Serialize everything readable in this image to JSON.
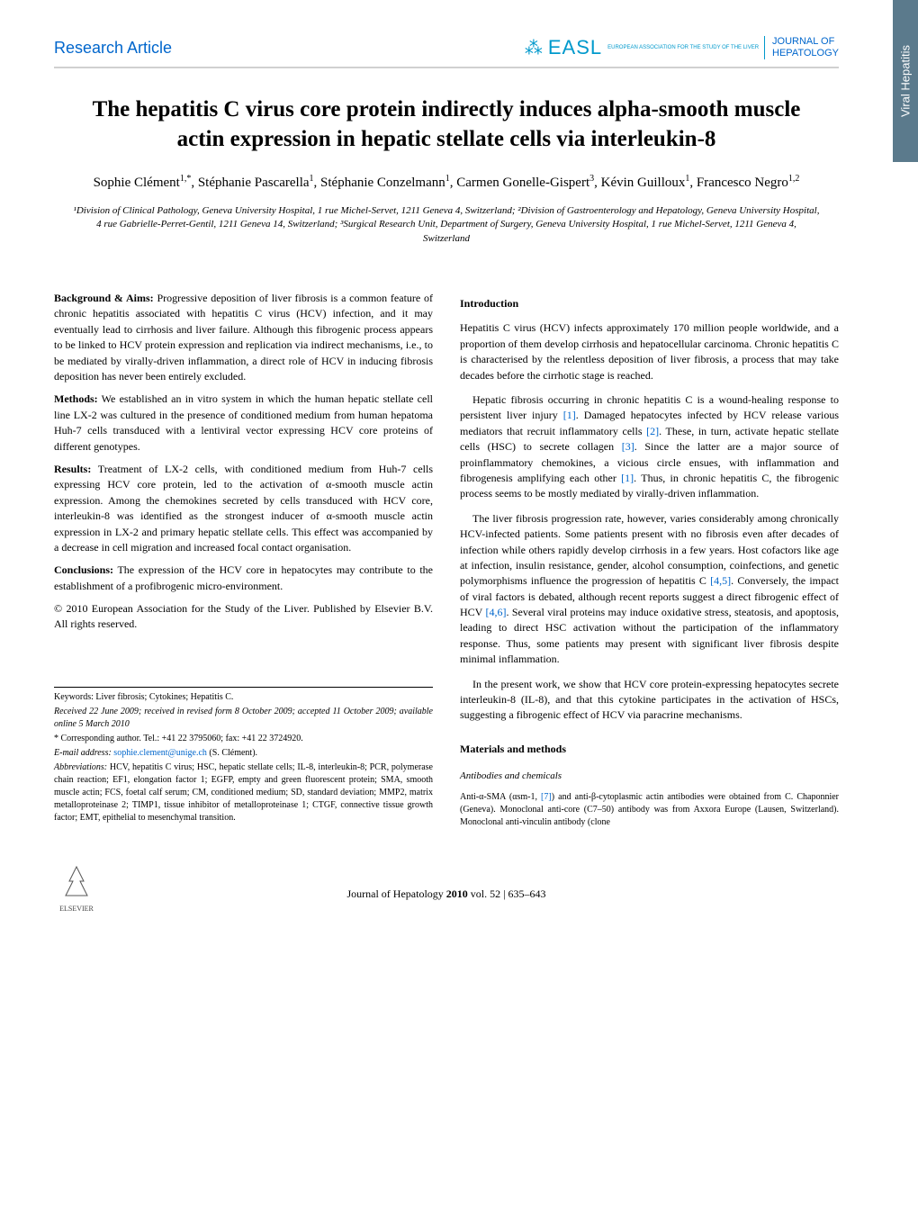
{
  "side_tab": "Viral Hepatitis",
  "header": {
    "article_type": "Research Article",
    "easl": "EASL",
    "easl_sub": "EUROPEAN ASSOCIATION FOR THE STUDY OF THE LIVER",
    "journal_line1": "JOURNAL OF",
    "journal_line2": "HEPATOLOGY"
  },
  "title": "The hepatitis C virus core protein indirectly induces alpha-smooth muscle actin expression in hepatic stellate cells via interleukin-8",
  "authors_html": "Sophie Clément<sup>1,*</sup>, Stéphanie Pascarella<sup>1</sup>, Stéphanie Conzelmann<sup>1</sup>, Carmen Gonelle-Gispert<sup>3</sup>, Kévin Guilloux<sup>1</sup>, Francesco Negro<sup>1,2</sup>",
  "affiliations": "¹Division of Clinical Pathology, Geneva University Hospital, 1 rue Michel-Servet, 1211 Geneva 4, Switzerland; ²Division of Gastroenterology and Hepatology, Geneva University Hospital, 4 rue Gabrielle-Perret-Gentil, 1211 Geneva 14, Switzerland; ³Surgical Research Unit, Department of Surgery, Geneva University Hospital, 1 rue Michel-Servet, 1211 Geneva 4, Switzerland",
  "abstract": {
    "bg_label": "Background & Aims:",
    "bg": " Progressive deposition of liver fibrosis is a common feature of chronic hepatitis associated with hepatitis C virus (HCV) infection, and it may eventually lead to cirrhosis and liver failure. Although this fibrogenic process appears to be linked to HCV protein expression and replication via indirect mechanisms, i.e., to be mediated by virally-driven inflammation, a direct role of HCV in inducing fibrosis deposition has never been entirely excluded.",
    "methods_label": "Methods:",
    "methods": " We established an in vitro system in which the human hepatic stellate cell line LX-2 was cultured in the presence of conditioned medium from human hepatoma Huh-7 cells transduced with a lentiviral vector expressing HCV core proteins of different genotypes.",
    "results_label": "Results:",
    "results": " Treatment of LX-2 cells, with conditioned medium from Huh-7 cells expressing HCV core protein, led to the activation of α-smooth muscle actin expression. Among the chemokines secreted by cells transduced with HCV core, interleukin-8 was identified as the strongest inducer of α-smooth muscle actin expression in LX-2 and primary hepatic stellate cells. This effect was accompanied by a decrease in cell migration and increased focal contact organisation.",
    "conclusions_label": "Conclusions:",
    "conclusions": " The expression of the HCV core in hepatocytes may contribute to the establishment of a profibrogenic micro-environment.",
    "copyright": "© 2010 European Association for the Study of the Liver. Published by Elsevier B.V. All rights reserved."
  },
  "intro": {
    "heading": "Introduction",
    "p1": "Hepatitis C virus (HCV) infects approximately 170 million people worldwide, and a proportion of them develop cirrhosis and hepatocellular carcinoma. Chronic hepatitis C is characterised by the relentless deposition of liver fibrosis, a process that may take decades before the cirrhotic stage is reached.",
    "p2a": "Hepatic fibrosis occurring in chronic hepatitis C is a wound-healing response to persistent liver injury ",
    "r1": "[1]",
    "p2b": ". Damaged hepatocytes infected by HCV release various mediators that recruit inflammatory cells ",
    "r2": "[2]",
    "p2c": ". These, in turn, activate hepatic stellate cells (HSC) to secrete collagen ",
    "r3": "[3]",
    "p2d": ". Since the latter are a major source of proinflammatory chemokines, a vicious circle ensues, with inflammation and fibrogenesis amplifying each other ",
    "r1b": "[1]",
    "p2e": ". Thus, in chronic hepatitis C, the fibrogenic process seems to be mostly mediated by virally-driven inflammation.",
    "p3a": "The liver fibrosis progression rate, however, varies considerably among chronically HCV-infected patients. Some patients present with no fibrosis even after decades of infection while others rapidly develop cirrhosis in a few years. Host cofactors like age at infection, insulin resistance, gender, alcohol consumption, coinfections, and genetic polymorphisms influence the progression of hepatitis C ",
    "r45": "[4,5]",
    "p3b": ". Conversely, the impact of viral factors is debated, although recent reports suggest a direct fibrogenic effect of HCV ",
    "r46": "[4,6]",
    "p3c": ". Several viral proteins may induce oxidative stress, steatosis, and apoptosis, leading to direct HSC activation without the participation of the inflammatory response. Thus, some patients may present with significant liver fibrosis despite minimal inflammation.",
    "p4": "In the present work, we show that HCV core protein-expressing hepatocytes secrete interleukin-8 (IL-8), and that this cytokine participates in the activation of HSCs, suggesting a fibrogenic effect of HCV via paracrine mechanisms."
  },
  "mm": {
    "heading": "Materials and methods",
    "sub1": "Antibodies and chemicals",
    "p1a": "Anti-α-SMA (αsm-1, ",
    "r7": "[7]",
    "p1b": ") and anti-β-cytoplasmic actin antibodies were obtained from C. Chaponnier (Geneva). Monoclonal anti-core (C7–50) antibody was from Axxora Europe (Lausen, Switzerland). Monoclonal anti-vinculin antibody (clone"
  },
  "footnotes": {
    "keywords": "Keywords: Liver fibrosis; Cytokines; Hepatitis C.",
    "received": "Received 22 June 2009; received in revised form 8 October 2009; accepted 11 October 2009; available online 5 March 2010",
    "corresponding": "* Corresponding author. Tel.: +41 22 3795060; fax: +41 22 3724920.",
    "email_label": "E-mail address: ",
    "email": "sophie.clement@unige.ch",
    "email_author": " (S. Clément).",
    "abbrev_label": "Abbreviations: ",
    "abbrev": "HCV, hepatitis C virus; HSC, hepatic stellate cells; IL-8, interleukin-8; PCR, polymerase chain reaction; EF1, elongation factor 1; EGFP, empty and green fluorescent protein; SMA, smooth muscle actin; FCS, foetal calf serum; CM, conditioned medium; SD, standard deviation; MMP2, matrix metalloproteinase 2; TIMP1, tissue inhibitor of metalloproteinase 1; CTGF, connective tissue growth factor; EMT, epithelial to mesenchymal transition."
  },
  "footer": {
    "elsevier": "ELSEVIER",
    "cite_a": "Journal of Hepatology ",
    "cite_b": "2010",
    "cite_c": " vol. 52 | 635–643"
  },
  "colors": {
    "link": "#0066cc",
    "easl": "#0099cc",
    "side_tab_bg": "#5b7a8c"
  }
}
